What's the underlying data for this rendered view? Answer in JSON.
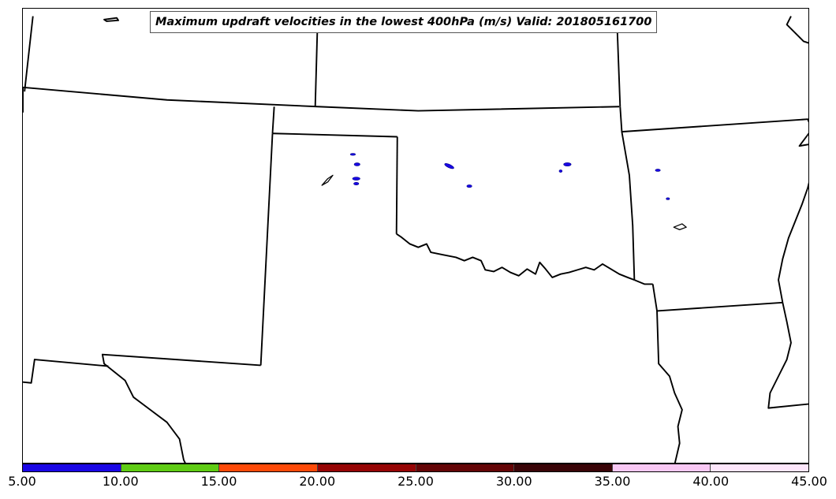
{
  "title": "Maximum updraft velocities in the lowest 400hPa (m/s) Valid: 201805161700",
  "colorbar": {
    "segments": [
      {
        "from": 5.0,
        "to": 10.0,
        "color": "#1a06e6"
      },
      {
        "from": 10.0,
        "to": 15.0,
        "color": "#5fcc14"
      },
      {
        "from": 15.0,
        "to": 20.0,
        "color": "#ff4a08"
      },
      {
        "from": 20.0,
        "to": 25.0,
        "color": "#960405"
      },
      {
        "from": 25.0,
        "to": 30.0,
        "color": "#640506"
      },
      {
        "from": 30.0,
        "to": 35.0,
        "color": "#3a0508"
      },
      {
        "from": 35.0,
        "to": 40.0,
        "color": "#f9c8f4"
      },
      {
        "from": 40.0,
        "to": 45.0,
        "color": "#fde6fb"
      }
    ],
    "tick_labels": [
      "5.00",
      "10.00",
      "15.00",
      "20.00",
      "25.00",
      "30.00",
      "35.00",
      "40.00",
      "45.00"
    ]
  },
  "colors": {
    "border": "#000000",
    "updraft_cell": "#1a06e6"
  }
}
